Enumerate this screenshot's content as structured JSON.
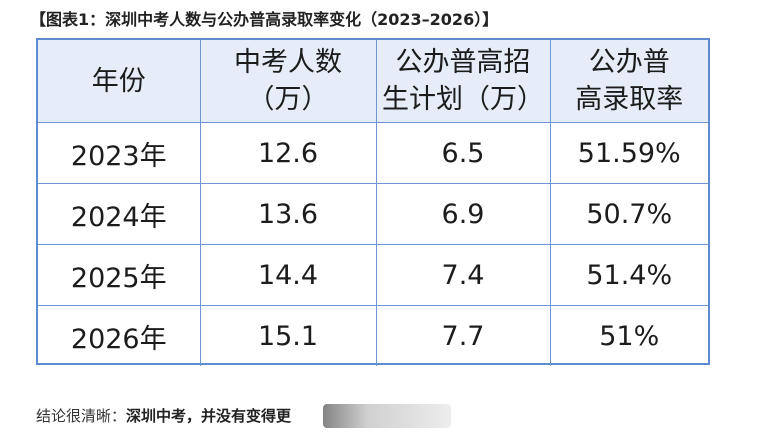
{
  "caption": "【图表1：深圳中考人数与公办普高录取率变化（2023–2026）】",
  "chart_data": {
    "type": "table",
    "title": "【图表1：深圳中考人数与公办普高录取率变化（2023–2026）】",
    "columns": [
      {
        "lines": [
          "年份"
        ]
      },
      {
        "lines": [
          "中考人数",
          "（万）"
        ]
      },
      {
        "lines": [
          "公办普高招",
          "生计划（万）"
        ]
      },
      {
        "lines": [
          "公办普",
          "高录取率"
        ]
      }
    ],
    "rows": [
      {
        "year": "2023年",
        "candidates": "12.6",
        "plan": "6.5",
        "rate": "51.59%"
      },
      {
        "year": "2024年",
        "candidates": "13.6",
        "plan": "6.9",
        "rate": "50.7%"
      },
      {
        "year": "2025年",
        "candidates": "14.4",
        "plan": "7.4",
        "rate": "51.4%"
      },
      {
        "year": "2026年",
        "candidates": "15.1",
        "plan": "7.7",
        "rate": "51%"
      }
    ],
    "colors": {
      "border": "#6f96d2",
      "header_bg": "#e6edf8"
    }
  },
  "conclusion": {
    "lead": "结论很清晰：",
    "bold": "深圳中考，并没有变得更"
  }
}
